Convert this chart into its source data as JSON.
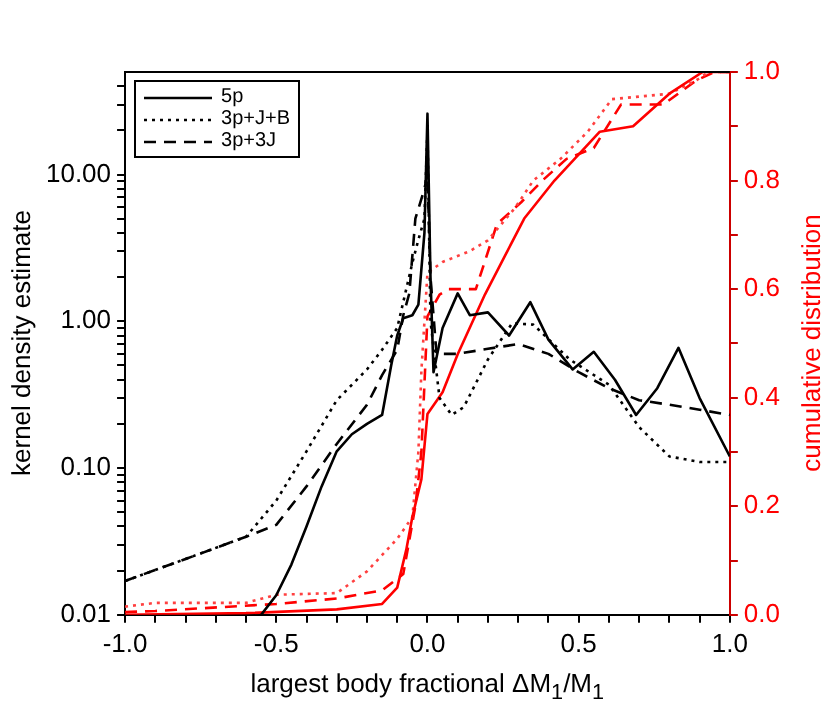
{
  "chart_data": {
    "type": "line",
    "xlabel": "largest body fractional ΔM$_{1}$/M$_{1}$",
    "ylabel": "kernel density estimate",
    "y2label": "cumulative distribution",
    "log": "y",
    "grid": false,
    "legend": "top left",
    "marker": "none",
    "xlim": [
      -1,
      1
    ],
    "xticks": [
      {
        "value": -1,
        "label": "-1.0"
      },
      {
        "value": -0.9,
        "label": null
      },
      {
        "value": -0.8,
        "label": null
      },
      {
        "value": -0.7,
        "label": null
      },
      {
        "value": -0.6,
        "label": null
      },
      {
        "value": -0.5,
        "label": "-0.5"
      },
      {
        "value": -0.4,
        "label": null
      },
      {
        "value": -0.3,
        "label": null
      },
      {
        "value": -0.2,
        "label": null
      },
      {
        "value": -0.1,
        "label": null
      },
      {
        "value": 0,
        "label": "0.0"
      },
      {
        "value": 0.1,
        "label": null
      },
      {
        "value": 0.2,
        "label": null
      },
      {
        "value": 0.3,
        "label": null
      },
      {
        "value": 0.4,
        "label": null
      },
      {
        "value": 0.5,
        "label": "0.5"
      },
      {
        "value": 0.6,
        "label": null
      },
      {
        "value": 0.7,
        "label": null
      },
      {
        "value": 0.8,
        "label": null
      },
      {
        "value": 0.9,
        "label": null
      },
      {
        "value": 1,
        "label": "1.0"
      }
    ],
    "ylim": [
      0.01,
      50
    ],
    "yticks": [
      0.01,
      {
        "value": 0.02,
        "label": null
      },
      {
        "value": 0.03,
        "label": null
      },
      {
        "value": 0.04,
        "label": null
      },
      {
        "value": 0.05,
        "label": null
      },
      {
        "value": 0.06,
        "label": null
      },
      {
        "value": 0.07,
        "label": null
      },
      {
        "value": 0.08,
        "label": null
      },
      {
        "value": 0.09,
        "label": null
      },
      {
        "value": 0.1,
        "label": "0.10"
      },
      {
        "value": 0.2,
        "label": null
      },
      {
        "value": 0.3,
        "label": null
      },
      {
        "value": 0.4,
        "label": null
      },
      {
        "value": 0.5,
        "label": null
      },
      {
        "value": 0.6,
        "label": null
      },
      {
        "value": 0.7,
        "label": null
      },
      {
        "value": 0.8,
        "label": null
      },
      {
        "value": 0.9,
        "label": null
      },
      {
        "value": 1,
        "label": "1.00"
      },
      {
        "value": 2,
        "label": null
      },
      {
        "value": 3,
        "label": null
      },
      {
        "value": 4,
        "label": null
      },
      {
        "value": 5,
        "label": null
      },
      {
        "value": 6,
        "label": null
      },
      {
        "value": 7,
        "label": null
      },
      {
        "value": 8,
        "label": null
      },
      {
        "value": 9,
        "label": null
      },
      {
        "value": 10,
        "label": "10.00"
      },
      {
        "value": 20,
        "label": null
      },
      {
        "value": 30,
        "label": null
      },
      {
        "value": 40,
        "label": null
      }
    ],
    "y2lim": [
      0,
      1
    ],
    "y2ticks": [
      {
        "value": 0,
        "label": "0.0"
      },
      {
        "value": 0.1,
        "label": null
      },
      {
        "value": 0.2,
        "label": "0.2"
      },
      {
        "value": 0.3,
        "label": null
      },
      {
        "value": 0.4,
        "label": "0.4"
      },
      {
        "value": 0.5,
        "label": null
      },
      {
        "value": 0.6,
        "label": "0.6"
      },
      {
        "value": 0.7,
        "label": null
      },
      {
        "value": 0.8,
        "label": "0.8"
      },
      {
        "value": 0.9,
        "label": null
      },
      {
        "value": 1,
        "label": "1.0"
      }
    ],
    "series": [
      {
        "name": "5p",
        "color": "#000000",
        "line_style": "solid",
        "x": [
          -0.55,
          -0.5,
          -0.45,
          -0.4,
          -0.35,
          -0.3,
          -0.25,
          -0.2,
          -0.15,
          -0.12,
          -0.1,
          -0.08,
          -0.05,
          -0.03,
          -0.01,
          0,
          0.01,
          0.02,
          0.05,
          0.1,
          0.14,
          0.2,
          0.27,
          0.34,
          0.4,
          0.48,
          0.55,
          0.62,
          0.69,
          0.76,
          0.83,
          0.9,
          1.0
        ],
        "values": [
          0.01,
          0.0136,
          0.022,
          0.04,
          0.075,
          0.13,
          0.17,
          0.2,
          0.23,
          0.5,
          0.8,
          1.05,
          1.1,
          1.3,
          4,
          26,
          2,
          0.45,
          0.9,
          1.55,
          1.1,
          1.15,
          0.8,
          1.35,
          0.75,
          0.47,
          0.62,
          0.4,
          0.23,
          0.35,
          0.66,
          0.3,
          0.12
        ]
      },
      {
        "name": "3p+J+B",
        "color": "#000000",
        "line_style": "dotted",
        "x": [
          -1,
          -0.8,
          -0.6,
          -0.5,
          -0.4,
          -0.3,
          -0.2,
          -0.15,
          -0.1,
          -0.05,
          -0.03,
          -0.01,
          0,
          0.01,
          0.04,
          0.08,
          0.12,
          0.2,
          0.28,
          0.35,
          0.47,
          0.6,
          0.7,
          0.8,
          0.9,
          1.0
        ],
        "values": [
          0.017,
          0.024,
          0.034,
          0.06,
          0.13,
          0.29,
          0.47,
          0.64,
          0.9,
          2.5,
          3.6,
          5,
          20,
          1,
          0.3,
          0.23,
          0.26,
          0.55,
          0.97,
          0.95,
          0.55,
          0.37,
          0.19,
          0.12,
          0.11,
          0.11
        ]
      },
      {
        "name": "3p+3J",
        "color": "#000000",
        "line_style": "dashed",
        "x": [
          -1,
          -0.8,
          -0.6,
          -0.5,
          -0.4,
          -0.3,
          -0.2,
          -0.15,
          -0.1,
          -0.08,
          -0.06,
          -0.04,
          -0.01,
          0,
          0.01,
          0.03,
          0.1,
          0.2,
          0.3,
          0.4,
          0.5,
          0.6,
          0.7,
          0.8,
          0.9,
          1.0
        ],
        "values": [
          0.017,
          0.024,
          0.034,
          0.041,
          0.075,
          0.146,
          0.27,
          0.43,
          0.64,
          1.1,
          1.55,
          5,
          8,
          10,
          2,
          0.6,
          0.6,
          0.65,
          0.7,
          0.6,
          0.45,
          0.35,
          0.29,
          0.27,
          0.25,
          0.23
        ]
      },
      {
        "color": "#ff0000",
        "line_style": "solid",
        "axis": "y2",
        "x": [
          -1,
          -0.6,
          -0.3,
          -0.15,
          -0.1,
          -0.07,
          -0.05,
          -0.02,
          0,
          0.05,
          0.1,
          0.19,
          0.32,
          0.42,
          0.57,
          0.68,
          0.8,
          0.91,
          1.0
        ],
        "values": [
          0,
          0.003,
          0.01,
          0.02,
          0.05,
          0.12,
          0.18,
          0.25,
          0.37,
          0.41,
          0.48,
          0.59,
          0.73,
          0.8,
          0.89,
          0.9,
          0.96,
          1.0,
          1.0
        ]
      },
      {
        "color": "#ff4040",
        "line_style": "dotted",
        "axis": "y2",
        "x": [
          -1,
          -0.9,
          -0.6,
          -0.5,
          -0.3,
          -0.2,
          -0.1,
          -0.05,
          -0.03,
          -0.02,
          0,
          0.05,
          0.14,
          0.2,
          0.29,
          0.35,
          0.44,
          0.53,
          0.61,
          0.8,
          0.89,
          0.93,
          1.0
        ],
        "values": [
          0.015,
          0.022,
          0.022,
          0.037,
          0.04,
          0.08,
          0.14,
          0.18,
          0.3,
          0.45,
          0.63,
          0.65,
          0.67,
          0.69,
          0.75,
          0.8,
          0.84,
          0.89,
          0.95,
          0.96,
          0.985,
          1.0,
          1.0
        ]
      },
      {
        "color": "#ff0000",
        "line_style": "dashed",
        "axis": "y2",
        "x": [
          -1,
          -0.9,
          -0.5,
          -0.3,
          -0.15,
          -0.08,
          -0.04,
          -0.02,
          0,
          0.04,
          0.07,
          0.16,
          0.23,
          0.31,
          0.38,
          0.46,
          0.55,
          0.64,
          0.78,
          0.89,
          0.95,
          1.0
        ],
        "values": [
          0.005,
          0.007,
          0.02,
          0.03,
          0.045,
          0.075,
          0.2,
          0.3,
          0.55,
          0.59,
          0.6,
          0.6,
          0.72,
          0.76,
          0.8,
          0.84,
          0.86,
          0.94,
          0.94,
          0.985,
          1.0,
          1.0
        ]
      }
    ]
  }
}
